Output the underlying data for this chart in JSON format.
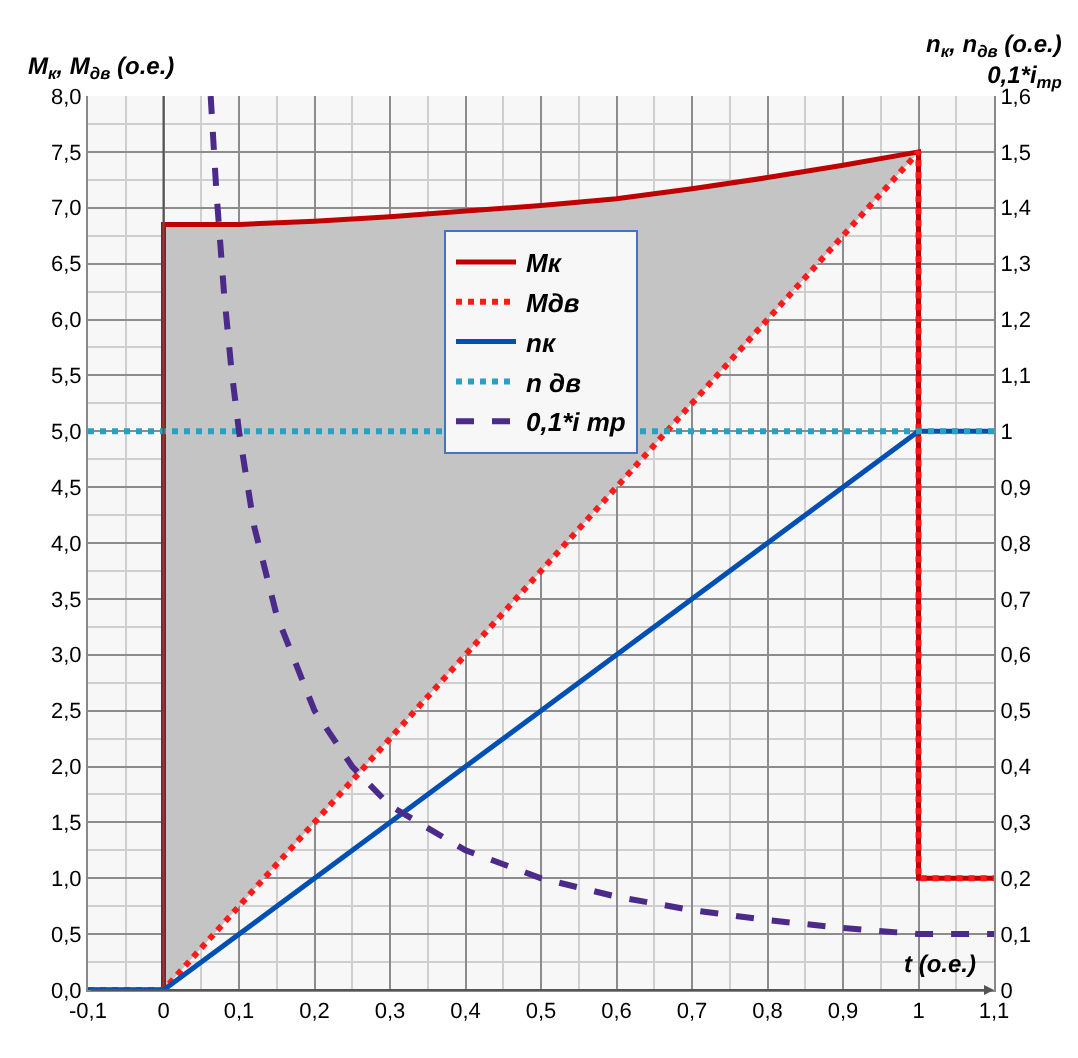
{
  "chart_data": {
    "type": "line",
    "xlabel": "t (о.е.)",
    "ylabel": "М$_{к}$, М$_{дв}$ (о.е.)",
    "y2label": "n$_{к}$, n$_{дв}$ (о.е.)\n0,1*i$_{тр}$",
    "xlim": [
      -0.1,
      1.1
    ],
    "xticks": [
      {
        "value": -0.1,
        "label": "-0,1"
      },
      0,
      {
        "value": 0.1,
        "label": "0,1"
      },
      {
        "value": 0.2,
        "label": "0,2"
      },
      {
        "value": 0.3,
        "label": "0,3"
      },
      {
        "value": 0.4,
        "label": "0,4"
      },
      {
        "value": 0.5,
        "label": "0,5"
      },
      {
        "value": 0.6,
        "label": "0,6"
      },
      {
        "value": 0.7,
        "label": "0,7"
      },
      {
        "value": 0.8,
        "label": "0,8"
      },
      {
        "value": 0.9,
        "label": "0,9"
      },
      1,
      {
        "value": 1.1,
        "label": "1,1"
      }
    ],
    "ylim": [
      0,
      8
    ],
    "yticks": [
      {
        "value": 0,
        "label": "0,0"
      },
      {
        "value": 0.5,
        "label": "0,5"
      },
      {
        "value": 1,
        "label": "1,0"
      },
      {
        "value": 1.5,
        "label": "1,5"
      },
      {
        "value": 2,
        "label": "2,0"
      },
      {
        "value": 2.5,
        "label": "2,5"
      },
      {
        "value": 3,
        "label": "3,0"
      },
      {
        "value": 3.5,
        "label": "3,5"
      },
      {
        "value": 4,
        "label": "4,0"
      },
      {
        "value": 4.5,
        "label": "4,5"
      },
      {
        "value": 5,
        "label": "5,0"
      },
      {
        "value": 5.5,
        "label": "5,5"
      },
      {
        "value": 6,
        "label": "6,0"
      },
      {
        "value": 6.5,
        "label": "6,5"
      },
      {
        "value": 7,
        "label": "7,0"
      },
      {
        "value": 7.5,
        "label": "7,5"
      },
      {
        "value": 8,
        "label": "8,0"
      }
    ],
    "y2lim": [
      0,
      1.6
    ],
    "y2ticks": [
      0,
      {
        "value": 0.1,
        "label": "0,1"
      },
      {
        "value": 0.2,
        "label": "0,2"
      },
      {
        "value": 0.3,
        "label": "0,3"
      },
      {
        "value": 0.4,
        "label": "0,4"
      },
      {
        "value": 0.5,
        "label": "0,5"
      },
      {
        "value": 0.6,
        "label": "0,6"
      },
      {
        "value": 0.7,
        "label": "0,7"
      },
      {
        "value": 0.8,
        "label": "0,8"
      },
      {
        "value": 0.9,
        "label": "0,9"
      },
      1,
      {
        "value": 1.1,
        "label": "1,1"
      },
      {
        "value": 1.2,
        "label": "1,2"
      },
      {
        "value": 1.3,
        "label": "1,3"
      },
      {
        "value": 1.4,
        "label": "1,4"
      },
      {
        "value": 1.5,
        "label": "1,5"
      },
      {
        "value": 1.6,
        "label": "1,6"
      }
    ],
    "grid": true,
    "legend": "top",
    "marker": "none",
    "ref_lines": [
      {
        "axis": "x",
        "value": 0,
        "color": "#555555"
      }
    ],
    "series": [
      {
        "name": "Мк",
        "color": "#c00000",
        "line_style": "solid",
        "x": [
          -0.1,
          0,
          0,
          0.1,
          0.2,
          0.3,
          0.4,
          0.5,
          0.6,
          0.7,
          0.8,
          0.9,
          1,
          1,
          1.1
        ],
        "values": [
          0,
          0,
          6.85,
          6.85,
          6.88,
          6.92,
          6.97,
          7.02,
          7.08,
          7.17,
          7.27,
          7.38,
          7.5,
          1,
          1
        ]
      },
      {
        "name": "Мдв",
        "color": "#ff1a1a",
        "line_style": "dotted",
        "x": [
          -0.1,
          0,
          0.1,
          0.2,
          0.3,
          0.4,
          0.5,
          0.6,
          0.7,
          0.8,
          0.9,
          1,
          1,
          1.1
        ],
        "values": [
          0,
          0,
          0.75,
          1.5,
          2.25,
          3,
          3.75,
          4.5,
          5.25,
          6,
          6.75,
          7.5,
          1,
          1
        ],
        "lower": [
          null,
          0,
          0.75,
          1.5,
          2.25,
          3,
          3.75,
          4.5,
          5.25,
          6,
          6.75,
          7.5,
          null,
          null
        ],
        "upper": [
          null,
          6.85,
          6.85,
          6.88,
          6.92,
          6.97,
          7.02,
          7.08,
          7.17,
          7.27,
          7.38,
          7.5,
          null,
          null
        ]
      },
      {
        "name": "nк",
        "color": "#0050b4",
        "line_style": "solid",
        "axis": "y2",
        "x": [
          -0.1,
          0,
          1,
          1.1
        ],
        "values": [
          0,
          0,
          1,
          1
        ]
      },
      {
        "name": "n дв",
        "color": "#2aa0c0",
        "line_style": "dotted",
        "axis": "y2",
        "x": [
          -0.1,
          1.1
        ],
        "values": [
          1,
          1
        ]
      },
      {
        "name": "0,1*i тр",
        "color": "#4b2a8a",
        "line_style": "dashed",
        "axis": "y2",
        "x": [
          0.0625,
          0.07,
          0.08,
          0.09,
          0.1,
          0.12,
          0.15,
          0.2,
          0.25,
          0.3,
          0.4,
          0.5,
          0.6,
          0.7,
          0.8,
          0.9,
          1,
          1.1
        ],
        "values": [
          1.6,
          1.43,
          1.25,
          1.11,
          1,
          0.83,
          0.67,
          0.5,
          0.4,
          0.33,
          0.25,
          0.2,
          0.167,
          0.143,
          0.125,
          0.111,
          0.1,
          0.1
        ]
      }
    ]
  }
}
